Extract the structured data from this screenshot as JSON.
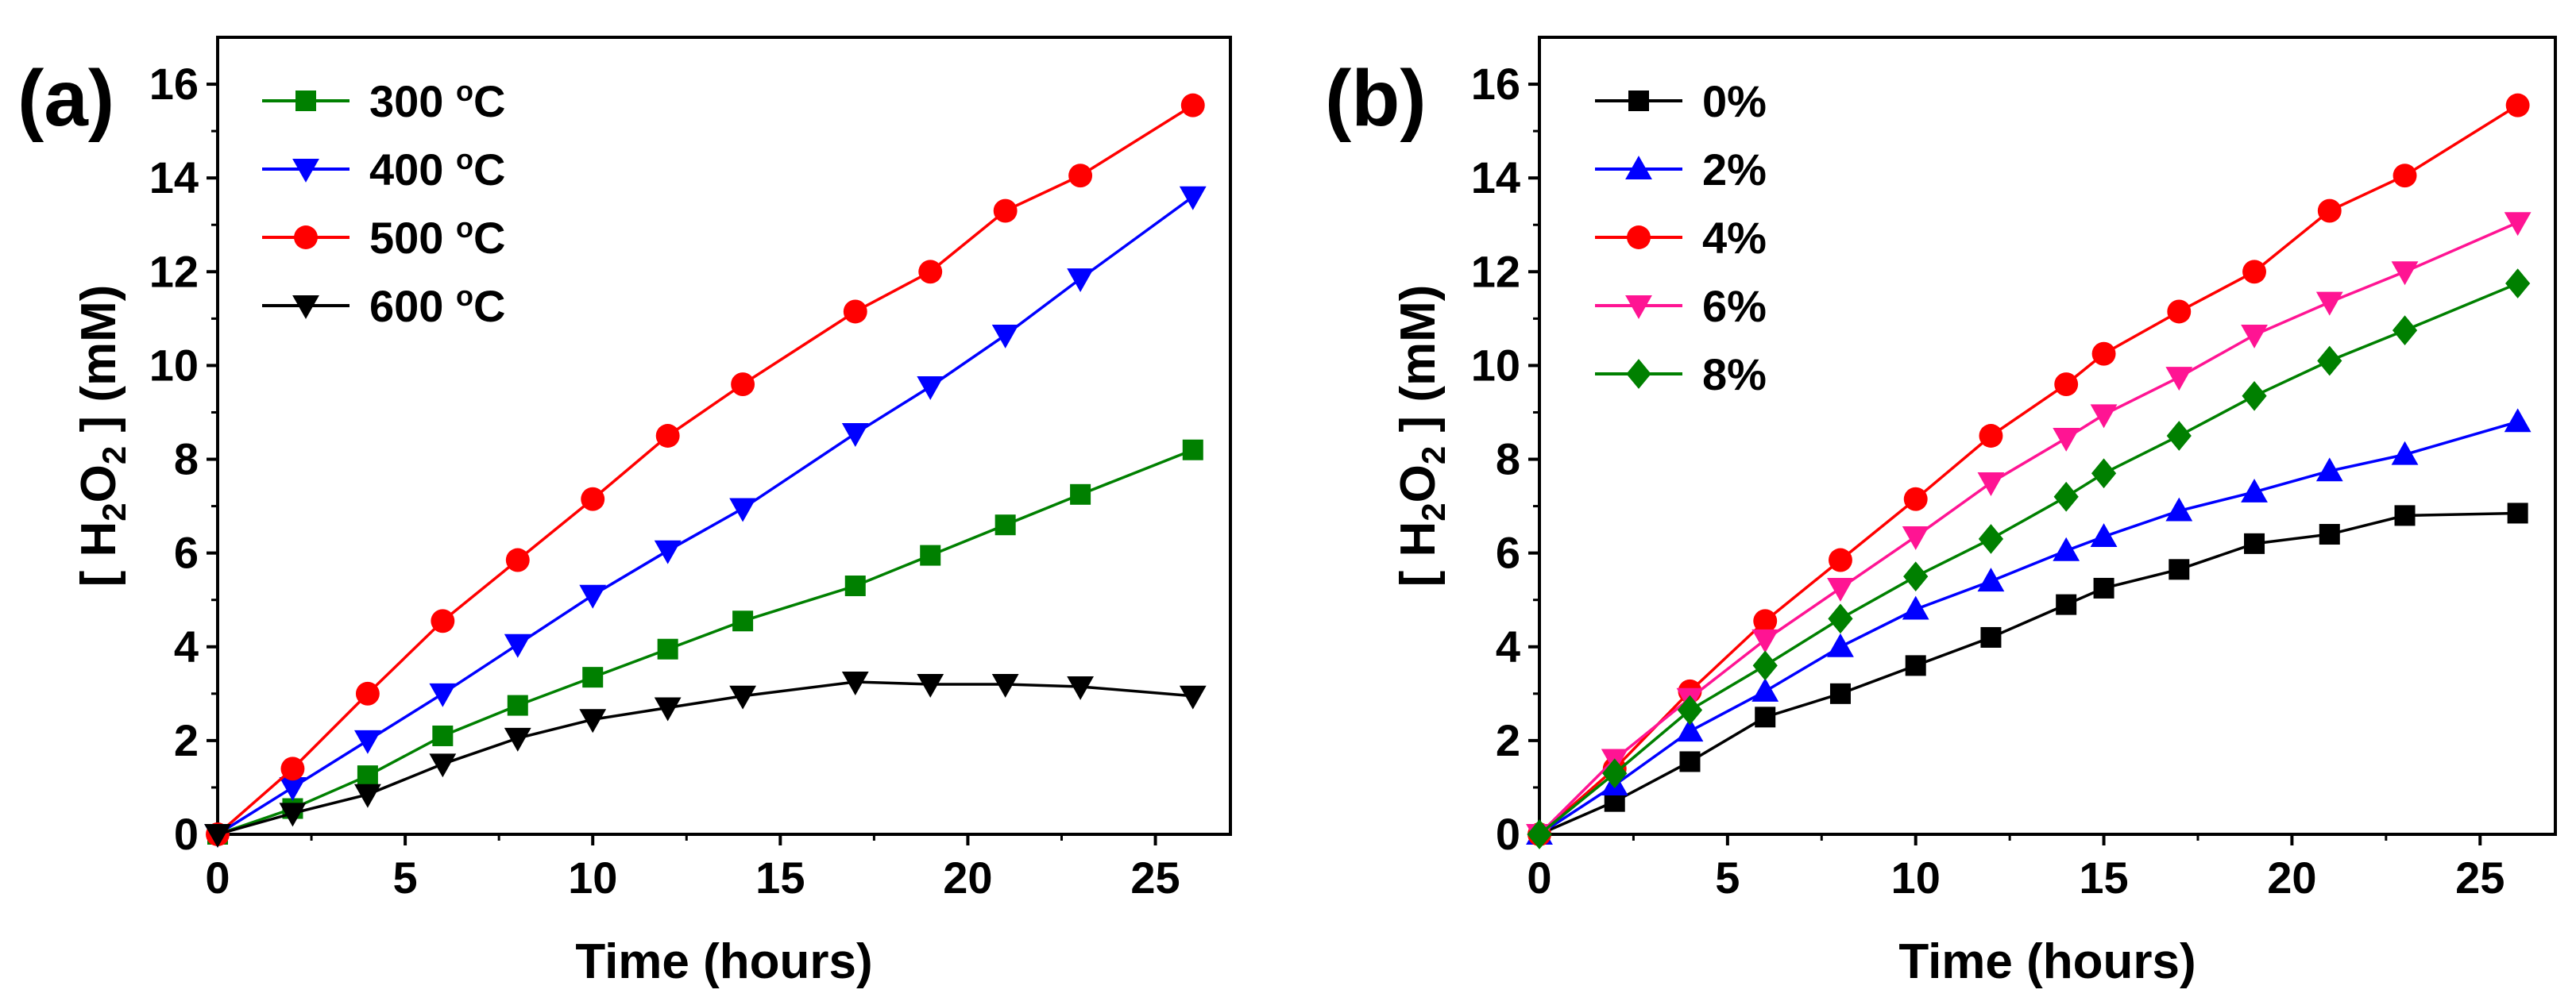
{
  "chart_data": [
    {
      "type": "line",
      "panel_label": "(a)",
      "xlabel": "Time (hours)",
      "ylabel_parts": [
        "[ H",
        "2",
        "O",
        "2",
        " ] (mM)"
      ],
      "xlim": [
        0,
        27
      ],
      "ylim": [
        0,
        17
      ],
      "xticks": [
        0,
        5,
        10,
        15,
        20,
        25
      ],
      "yticks": [
        0,
        2,
        4,
        6,
        8,
        10,
        12,
        14,
        16
      ],
      "grid": false,
      "legend_position": "top-left",
      "x": [
        0,
        2,
        4,
        6,
        8,
        10,
        12,
        14,
        17,
        19,
        21,
        23,
        26
      ],
      "series": [
        {
          "name": "300 ºC",
          "label_num": "300 ",
          "label_unit": "C",
          "color": "#008000",
          "marker": "square",
          "values": [
            0,
            0.55,
            1.25,
            2.1,
            2.75,
            3.35,
            3.95,
            4.55,
            5.3,
            5.95,
            6.6,
            7.25,
            8.2
          ]
        },
        {
          "name": "400 ºC",
          "label_num": "400 ",
          "label_unit": "C",
          "color": "#0000ff",
          "marker": "triangle-down",
          "values": [
            0,
            1.0,
            2.0,
            3.0,
            4.05,
            5.1,
            6.05,
            6.95,
            8.55,
            9.55,
            10.65,
            11.85,
            13.6
          ]
        },
        {
          "name": "500 ºC",
          "label_num": "500 ",
          "label_unit": "C",
          "color": "#ff0000",
          "marker": "circle",
          "values": [
            0,
            1.4,
            3.0,
            4.55,
            5.85,
            7.15,
            8.5,
            9.6,
            11.15,
            12.0,
            13.3,
            14.05,
            15.55
          ]
        },
        {
          "name": "600 ºC",
          "label_num": "600 ",
          "label_unit": "C",
          "color": "#000000",
          "marker": "triangle-down",
          "values": [
            0,
            0.45,
            0.85,
            1.5,
            2.05,
            2.45,
            2.7,
            2.95,
            3.25,
            3.2,
            3.2,
            3.15,
            2.95
          ]
        }
      ]
    },
    {
      "type": "line",
      "panel_label": "(b)",
      "xlabel": "Time (hours)",
      "ylabel_parts": [
        "[ H",
        "2",
        "O",
        "2",
        " ] (mM)"
      ],
      "xlim": [
        0,
        27
      ],
      "ylim": [
        0,
        17
      ],
      "xticks": [
        0,
        5,
        10,
        15,
        20,
        25
      ],
      "yticks": [
        0,
        2,
        4,
        6,
        8,
        10,
        12,
        14,
        16
      ],
      "grid": false,
      "legend_position": "top-left",
      "x": [
        0,
        2,
        4,
        6,
        8,
        10,
        12,
        14,
        15,
        17,
        19,
        21,
        23,
        26
      ],
      "series": [
        {
          "name": "0%",
          "color": "#000000",
          "marker": "square",
          "values": [
            0,
            0.7,
            1.55,
            2.5,
            3.0,
            3.6,
            4.2,
            4.9,
            5.25,
            5.65,
            6.2,
            6.4,
            6.8,
            6.85
          ]
        },
        {
          "name": "2%",
          "color": "#0000ff",
          "marker": "triangle-up",
          "values": [
            0,
            1.05,
            2.2,
            3.05,
            4.0,
            4.8,
            5.4,
            6.05,
            6.35,
            6.9,
            7.3,
            7.75,
            8.1,
            8.8
          ]
        },
        {
          "name": "4%",
          "color": "#ff0000",
          "marker": "circle",
          "values": [
            0,
            1.4,
            3.05,
            4.55,
            5.85,
            7.15,
            8.5,
            9.6,
            10.25,
            11.15,
            12.0,
            13.3,
            14.05,
            15.55
          ]
        },
        {
          "name": "6%",
          "color": "#ff1493",
          "marker": "triangle-down",
          "values": [
            0,
            1.6,
            2.9,
            4.15,
            5.25,
            6.35,
            7.5,
            8.45,
            8.95,
            9.75,
            10.65,
            11.35,
            12.0,
            13.05
          ]
        },
        {
          "name": "8%",
          "color": "#008000",
          "marker": "diamond",
          "values": [
            0,
            1.3,
            2.65,
            3.6,
            4.6,
            5.5,
            6.3,
            7.2,
            7.7,
            8.5,
            9.35,
            10.1,
            10.75,
            11.75
          ]
        }
      ]
    }
  ]
}
